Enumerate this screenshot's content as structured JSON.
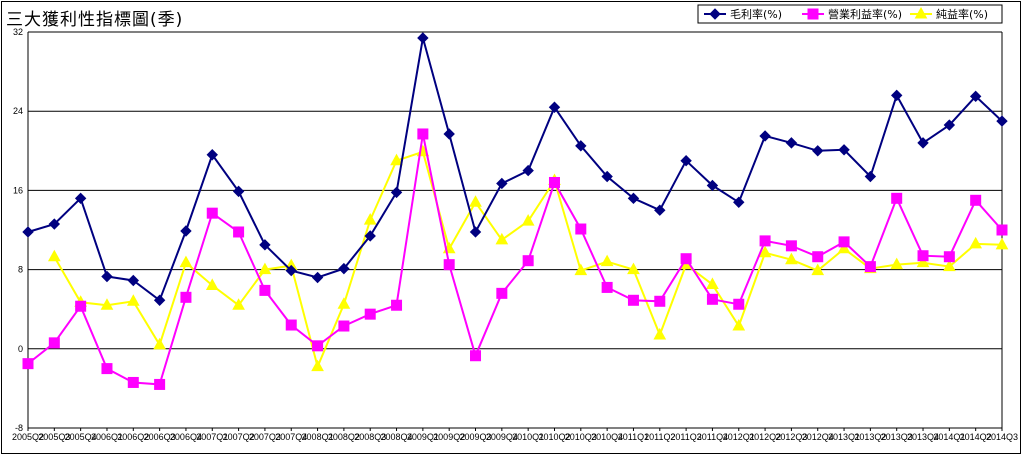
{
  "title": "三大獲利性指標圖(季)",
  "colors": {
    "gross": "#000080",
    "operating": "#ff00ff",
    "net": "#ffff00",
    "grid": "#000000",
    "background": "#ffffff"
  },
  "chart_data": {
    "type": "line",
    "title": "三大獲利性指標圖(季)",
    "xlabel": "",
    "ylabel": "",
    "ylim": [
      -8,
      32
    ],
    "yticks": [
      -8,
      0,
      8,
      16,
      24,
      32
    ],
    "ytick_labels": [
      "-8",
      "0",
      "8",
      "16",
      "24",
      "32"
    ],
    "grid": "horizontal",
    "legend_position": "top-right",
    "categories": [
      "2005Q2",
      "2005Q3",
      "2005Q4",
      "2006Q1",
      "2006Q2",
      "2006Q3",
      "2006Q4",
      "2007Q1",
      "2007Q2",
      "2007Q3",
      "2007Q4",
      "2008Q1",
      "2008Q2",
      "2008Q3",
      "2008Q4",
      "2009Q1",
      "2009Q2",
      "2009Q3",
      "2009Q4",
      "2010Q1",
      "2010Q2",
      "2010Q3",
      "2010Q4",
      "2011Q1",
      "2011Q2",
      "2011Q3",
      "2011Q4",
      "2012Q1",
      "2012Q2",
      "2012Q3",
      "2012Q4",
      "2013Q1",
      "2013Q2",
      "2013Q3",
      "2013Q4",
      "2014Q1",
      "2014Q2",
      "2014Q3"
    ],
    "series": [
      {
        "name": "毛利率(%)",
        "marker": "diamond",
        "values": [
          11.8,
          12.6,
          15.2,
          7.3,
          6.9,
          4.9,
          11.9,
          19.6,
          15.9,
          10.5,
          7.9,
          7.2,
          8.1,
          11.4,
          15.8,
          31.4,
          21.7,
          11.8,
          16.7,
          18.0,
          24.4,
          20.5,
          17.4,
          15.2,
          14.0,
          19.0,
          16.5,
          14.8,
          21.5,
          20.8,
          20.0,
          20.1,
          17.4,
          25.6,
          20.8,
          22.6,
          25.5,
          23.0
        ]
      },
      {
        "name": "營業利益率(%)",
        "marker": "square",
        "values": [
          -1.5,
          0.6,
          4.3,
          -2.0,
          -3.4,
          -3.6,
          5.2,
          13.7,
          11.8,
          5.9,
          2.4,
          0.3,
          2.3,
          3.5,
          4.4,
          21.7,
          8.5,
          -0.7,
          5.6,
          8.9,
          16.8,
          12.1,
          6.2,
          4.9,
          4.8,
          9.1,
          5.0,
          4.5,
          10.9,
          10.4,
          9.3,
          10.8,
          8.3,
          15.2,
          9.4,
          9.3,
          15.0,
          12.0
        ]
      },
      {
        "name": "純益率(%)",
        "marker": "triangle",
        "values": [
          null,
          9.3,
          4.7,
          4.4,
          4.8,
          0.4,
          8.7,
          6.4,
          4.4,
          8.0,
          8.4,
          -1.8,
          4.5,
          13.0,
          19.0,
          19.9,
          10.1,
          14.8,
          11.0,
          12.9,
          17.0,
          7.9,
          8.8,
          8.0,
          1.4,
          8.5,
          6.5,
          2.3,
          9.7,
          9.0,
          7.9,
          10.1,
          8.1,
          8.5,
          8.7,
          8.3,
          10.6,
          10.5
        ]
      }
    ]
  }
}
